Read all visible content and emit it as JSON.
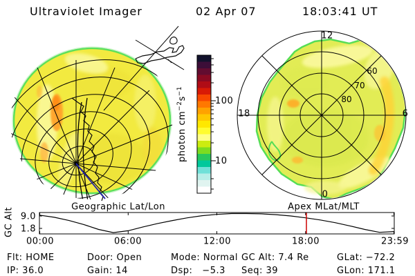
{
  "header": {
    "title": "Ultraviolet Imager",
    "date": "02 Apr 07",
    "time": "18:03:41 UT"
  },
  "panels": {
    "left_title": "Geographic Lat/Lon",
    "right_title": "Apex MLat/MLT"
  },
  "colorbar": {
    "unit_prefix": "photon cm",
    "unit_sup1": "−2",
    "unit_mid": "s",
    "unit_sup2": "−1",
    "tick_100": "100",
    "tick_10": "10"
  },
  "polar": {
    "mlt_top": "12",
    "mlt_left": "18",
    "mlt_right": "6",
    "mlt_bottom": "0",
    "ring_60": "60",
    "ring_70": "70",
    "ring_80": "80"
  },
  "alt_plot": {
    "ylabel": "GC Alt",
    "ymax_label": "9.0",
    "ymin_label": "1.8",
    "xticks": [
      "00:00",
      "06:00",
      "12:00",
      "18:00",
      "23:59"
    ]
  },
  "status": {
    "row1": [
      "Flt: HOME",
      "Door: Open",
      "Mode: Normal",
      "GC Alt: 7.4 Re",
      "GLat: −72.2"
    ],
    "row2": [
      "IP: 36.0",
      "Gain: 14",
      "Dsp:   −5.3",
      "Seq: 39",
      "GLon: 171.1"
    ]
  },
  "colors": {
    "marker_red": "#cc0000",
    "disk_yellow": "#f2ea40",
    "aurora_orange": "#ffa22b",
    "rim_green": "#5ce05c",
    "trajectory_blue": "#2222aa"
  },
  "chart_data": [
    {
      "type": "heatmap",
      "name": "uvi-earth-disk",
      "projection": "Geographic Lat/Lon",
      "units": "photon cm−2 s−1",
      "description": "Far-UV image of Earth's southern-hemisphere disk: nearly uniform dayglow (~20–60 photon cm−2 s−1, yellow) with a brighter ~100-level auroral/airglow patch near the dawn limb; black geographic lat/lon grid converging at the pole, Antarctic coastline, and a blue orbit-track segment overlaid"
    },
    {
      "type": "heatmap",
      "name": "apex-polar-projection",
      "projection": "Apex MLat/MLT",
      "mlat_rings": [
        80,
        70,
        60
      ],
      "mlt_axis_labels": [
        12,
        18,
        6,
        0
      ],
      "description": "Same UV image remapped to apex magnetic latitude / magnetic local time dial; rings every 10° magnetic latitude from the pole, spokes every 3 MLT hours; image blob fills most of the dial with pale-yellow and orange enhancements"
    },
    {
      "type": "colorbar",
      "name": "intensity-scale",
      "units": "photon cm−2 s−1",
      "scale": "log",
      "tick_values": [
        100,
        10
      ],
      "range_approx": [
        3,
        600
      ],
      "stops_top_to_bottom": [
        "#12122c",
        "#3c0e38",
        "#620c30",
        "#8a0a22",
        "#b00c16",
        "#d81a06",
        "#f84800",
        "#ff7800",
        "#ffa200",
        "#ffc800",
        "#ffe800",
        "#fffc30",
        "#ffff88",
        "#ccec10",
        "#7cdc20",
        "#28c85c",
        "#00c89c",
        "#70e0d8",
        "#b8eee8",
        "#e0f4f0",
        "#ffffff"
      ]
    },
    {
      "type": "line",
      "name": "gc-alt-orbit",
      "title": "GC Alt",
      "ylabel": "GC Alt (Re)",
      "yticks": [
        9.0,
        1.8
      ],
      "x": [
        "00:00",
        "01:00",
        "02:00",
        "03:00",
        "04:00",
        "05:00",
        "06:00",
        "07:00",
        "08:00",
        "09:00",
        "10:00",
        "11:00",
        "12:00",
        "13:00",
        "14:00",
        "15:00",
        "16:00",
        "17:00",
        "18:00",
        "19:00",
        "20:00",
        "21:00",
        "22:00",
        "23:00",
        "23:59"
      ],
      "values": [
        8.4,
        7.6,
        6.4,
        4.9,
        3.1,
        1.9,
        2.6,
        4.0,
        5.3,
        6.4,
        7.4,
        8.2,
        8.7,
        9.0,
        9.0,
        8.9,
        8.6,
        8.1,
        7.4,
        6.6,
        5.6,
        4.4,
        3.1,
        2.0,
        2.3
      ],
      "current_time_marker": "18:03",
      "current_value": 7.4,
      "perigee_re": 1.8,
      "apogee_re": 9.0
    }
  ]
}
